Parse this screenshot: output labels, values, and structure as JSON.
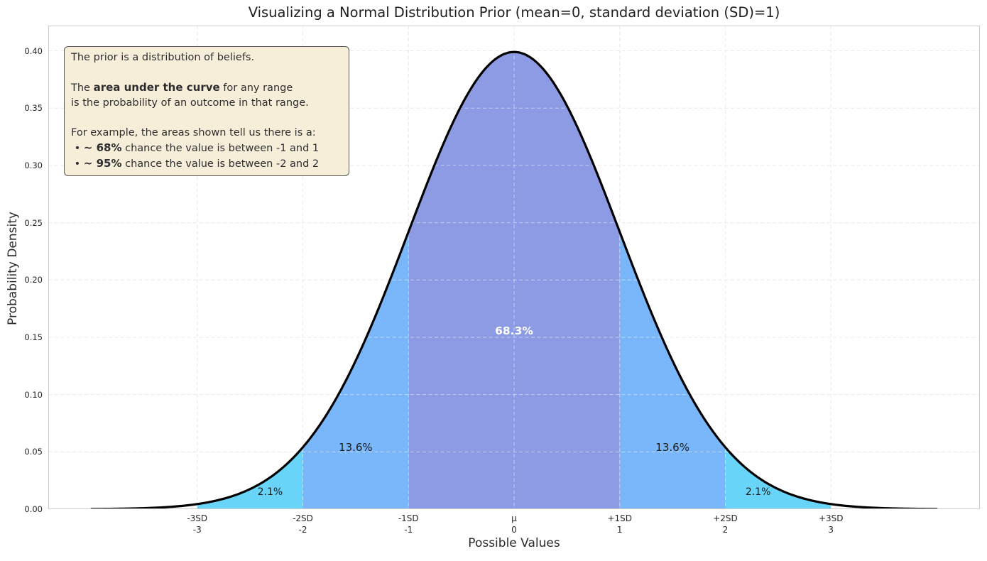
{
  "chart_data": {
    "type": "area",
    "title": "Visualizing a Normal Distribution Prior (mean=0, standard deviation (SD)=1)",
    "xlabel": "Possible Values",
    "ylabel": "Probability Density",
    "distribution": {
      "name": "normal",
      "mean": 0,
      "sd": 1,
      "peak_density": 0.3989
    },
    "xlim": [
      -4.41,
      4.41
    ],
    "ylim": [
      0,
      0.422
    ],
    "curve_domain": [
      -4,
      4
    ],
    "curve_color": "#000000",
    "spine_color": "#cccccc",
    "grid": {
      "on": true,
      "style": "dashed",
      "color": "#d9d9d9",
      "overlay_color": "rgba(255,255,255,0.5)"
    },
    "x_ticks": [
      {
        "x": -3,
        "line1": "-3SD",
        "line2": "-3"
      },
      {
        "x": -2,
        "line1": "-2SD",
        "line2": "-2"
      },
      {
        "x": -1,
        "line1": "-1SD",
        "line2": "-1"
      },
      {
        "x": 0,
        "line1": "μ",
        "line2": "0"
      },
      {
        "x": 1,
        "line1": "+1SD",
        "line2": "1"
      },
      {
        "x": 2,
        "line1": "+2SD",
        "line2": "2"
      },
      {
        "x": 3,
        "line1": "+3SD",
        "line2": "3"
      }
    ],
    "y_ticks": [
      0.0,
      0.05,
      0.1,
      0.15,
      0.2,
      0.25,
      0.3,
      0.35,
      0.4
    ],
    "bands": [
      {
        "from": -3,
        "to": -2,
        "color": "#68d4f8",
        "label": "2.1%",
        "label_x": -2.31,
        "label_y": 0.0149,
        "label_color": "#1a1a1a",
        "label_bold": false,
        "label_size": 14
      },
      {
        "from": -2,
        "to": -1,
        "color": "#79b7fa",
        "label": "13.6%",
        "label_x": -1.5,
        "label_y": 0.054,
        "label_color": "#1a1a1a",
        "label_bold": false,
        "label_size": 15
      },
      {
        "from": -1,
        "to": 1,
        "color": "#8c9be3",
        "label": "68.3%",
        "label_x": 0,
        "label_y": 0.1555,
        "label_color": "#ffffff",
        "label_bold": true,
        "label_size": 15.5
      },
      {
        "from": 1,
        "to": 2,
        "color": "#79b7fa",
        "label": "13.6%",
        "label_x": 1.5,
        "label_y": 0.054,
        "label_color": "#1a1a1a",
        "label_bold": false,
        "label_size": 15
      },
      {
        "from": 2,
        "to": 3,
        "color": "#68d4f8",
        "label": "2.1%",
        "label_x": 2.31,
        "label_y": 0.0149,
        "label_color": "#1a1a1a",
        "label_bold": false,
        "label_size": 14
      }
    ],
    "annotation": {
      "lines": [
        {
          "segments": [
            {
              "t": "The prior is a distribution of beliefs.",
              "b": false
            }
          ]
        },
        {
          "segments": []
        },
        {
          "segments": [
            {
              "t": "The ",
              "b": false
            },
            {
              "t": "area under the curve",
              "b": true
            },
            {
              "t": " for any range",
              "b": false
            }
          ]
        },
        {
          "segments": [
            {
              "t": "is the probability of an outcome in that range.",
              "b": false
            }
          ]
        },
        {
          "segments": []
        },
        {
          "segments": [
            {
              "t": "For example, the areas shown tell us there is a:",
              "b": false
            }
          ]
        },
        {
          "segments": [
            {
              "t": " • ",
              "b": false
            },
            {
              "t": "~ 68%",
              "b": true
            },
            {
              "t": " chance the value is between -1 and 1",
              "b": false
            }
          ]
        },
        {
          "segments": [
            {
              "t": " • ",
              "b": false
            },
            {
              "t": "~ 95%",
              "b": true
            },
            {
              "t": " chance the value is between -2 and 2",
              "b": false
            }
          ]
        }
      ]
    }
  }
}
